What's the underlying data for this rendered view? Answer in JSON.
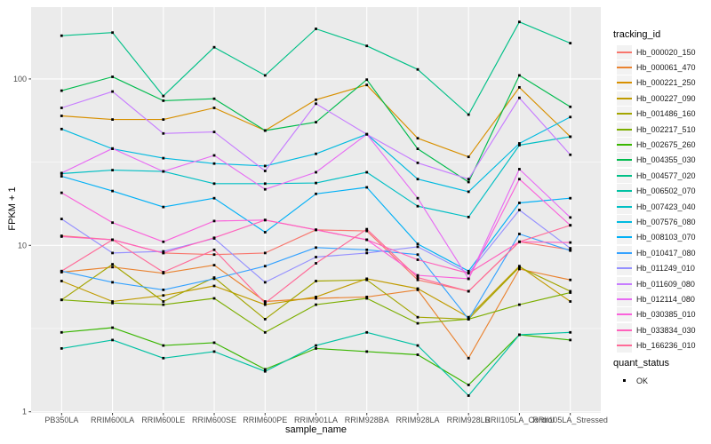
{
  "chart_data": {
    "type": "line",
    "title": "",
    "xlabel": "sample_name",
    "ylabel": "FPKM + 1",
    "y_scale": "log10",
    "y_ticks": [
      1,
      10,
      100
    ],
    "y_minor_ticks": [
      3.1623,
      31.623
    ],
    "ylim": [
      0.95,
      270
    ],
    "grid": true,
    "legend_position": "right",
    "point_shape": "small-black-square",
    "categories": [
      "PB350LA",
      "RRIM600LA",
      "RRIM600LE",
      "RRIM600SE",
      "RRIM600PE",
      "RRIM901LA",
      "RRIM928BA",
      "RRIM928LA",
      "RRIM928LB",
      "RRII105LA_Control",
      "RRII105LA_Stressed"
    ],
    "series": [
      {
        "name": "Hb_000020_150",
        "color": "#F8766D",
        "values": [
          11.4,
          10.8,
          9.0,
          8.8,
          9.0,
          12.4,
          12.2,
          6.2,
          5.3,
          10.5,
          9.4
        ]
      },
      {
        "name": "Hb_000061_470",
        "color": "#EA8331",
        "values": [
          6.9,
          7.4,
          6.8,
          7.6,
          4.6,
          4.8,
          4.9,
          5.4,
          2.1,
          7.2,
          6.2
        ]
      },
      {
        "name": "Hb_000221_250",
        "color": "#D89000",
        "values": [
          60,
          57,
          57,
          67,
          49,
          75,
          92,
          44,
          34,
          89,
          45
        ]
      },
      {
        "name": "Hb_000227_090",
        "color": "#C09B00",
        "values": [
          6.1,
          4.6,
          5.0,
          5.7,
          4.4,
          4.9,
          6.3,
          5.5,
          3.7,
          7.5,
          4.6
        ]
      },
      {
        "name": "Hb_001486_160",
        "color": "#A3A500",
        "values": [
          4.7,
          7.7,
          4.6,
          6.4,
          3.6,
          6.1,
          6.2,
          3.7,
          3.6,
          7.4,
          5.3
        ]
      },
      {
        "name": "Hb_002217_510",
        "color": "#7CAE00",
        "values": [
          4.7,
          4.5,
          4.4,
          4.8,
          3.0,
          4.4,
          4.8,
          3.4,
          3.6,
          4.4,
          5.2
        ]
      },
      {
        "name": "Hb_002675_260",
        "color": "#39B600",
        "values": [
          3.0,
          3.2,
          2.5,
          2.6,
          1.8,
          2.4,
          2.3,
          2.2,
          1.45,
          2.9,
          2.7
        ]
      },
      {
        "name": "Hb_004355_030",
        "color": "#00BB4E",
        "values": [
          85,
          103,
          74,
          76,
          49,
          55,
          99,
          38,
          24,
          105,
          68
        ]
      },
      {
        "name": "Hb_004577_020",
        "color": "#00C087",
        "values": [
          182,
          190,
          79,
          155,
          105,
          200,
          158,
          114,
          61,
          220,
          164
        ]
      },
      {
        "name": "Hb_006502_070",
        "color": "#00C1A3",
        "values": [
          2.4,
          2.7,
          2.1,
          2.3,
          1.75,
          2.5,
          3.0,
          2.5,
          1.25,
          2.9,
          3.0
        ]
      },
      {
        "name": "Hb_007423_040",
        "color": "#00BFC4",
        "values": [
          27,
          28.3,
          27.8,
          23.5,
          23.5,
          23.7,
          27.5,
          17.2,
          14.8,
          40,
          45
        ]
      },
      {
        "name": "Hb_007576_080",
        "color": "#00BAE0",
        "values": [
          50,
          38,
          33.4,
          31,
          30,
          35.5,
          46.5,
          25,
          21,
          41,
          59
        ]
      },
      {
        "name": "Hb_008103_070",
        "color": "#00B0F6",
        "values": [
          26,
          21.2,
          17.0,
          19.2,
          12.0,
          20.4,
          22.3,
          10.2,
          7.0,
          18.0,
          19.2
        ]
      },
      {
        "name": "Hb_010417_080",
        "color": "#35A2FF",
        "values": [
          7.0,
          6.0,
          5.4,
          6.3,
          7.5,
          9.7,
          9.4,
          8.8,
          3.6,
          11.7,
          9.3
        ]
      },
      {
        "name": "Hb_011249_010",
        "color": "#9590FF",
        "values": [
          14.4,
          9.0,
          9.2,
          11.0,
          6.0,
          8.5,
          9.0,
          9.8,
          6.8,
          16.3,
          9.6
        ]
      },
      {
        "name": "Hb_011609_080",
        "color": "#C77CFF",
        "values": [
          67,
          84,
          47,
          48,
          28,
          71,
          46.5,
          31.3,
          25,
          77,
          35
        ]
      },
      {
        "name": "Hb_012114_080",
        "color": "#E76BF3",
        "values": [
          27.2,
          38.2,
          27.8,
          34.7,
          21.7,
          27.5,
          46.5,
          19.2,
          6.3,
          28.7,
          14.7
        ]
      },
      {
        "name": "Hb_030385_010",
        "color": "#FA62DB",
        "values": [
          20.7,
          13.7,
          10.5,
          14.0,
          14.2,
          12.4,
          10.8,
          6.6,
          6.3,
          25,
          13.2
        ]
      },
      {
        "name": "Hb_033834_030",
        "color": "#FF62BC",
        "values": [
          11.3,
          10.8,
          9.0,
          11.1,
          14.2,
          12.4,
          10.8,
          8.2,
          6.8,
          10.5,
          10.4
        ]
      },
      {
        "name": "Hb_166236_010",
        "color": "#FF6A98",
        "values": [
          7.0,
          10.8,
          6.9,
          9.4,
          4.5,
          7.8,
          12.5,
          6.4,
          5.3,
          10.5,
          13.2
        ]
      }
    ]
  },
  "legend": {
    "title": "tracking_id"
  },
  "quant_status": {
    "title": "quant_status",
    "items": [
      "OK"
    ]
  },
  "colors": {
    "panel_bg": "#EBEBEB",
    "grid": "#FFFFFF",
    "tick_label": "#4D4D4D",
    "tick_mark": "#333333",
    "axis_title": "#000000",
    "legend_key_bg": "#F2F2F2",
    "point": "#000000",
    "background": "#FFFFFF"
  }
}
